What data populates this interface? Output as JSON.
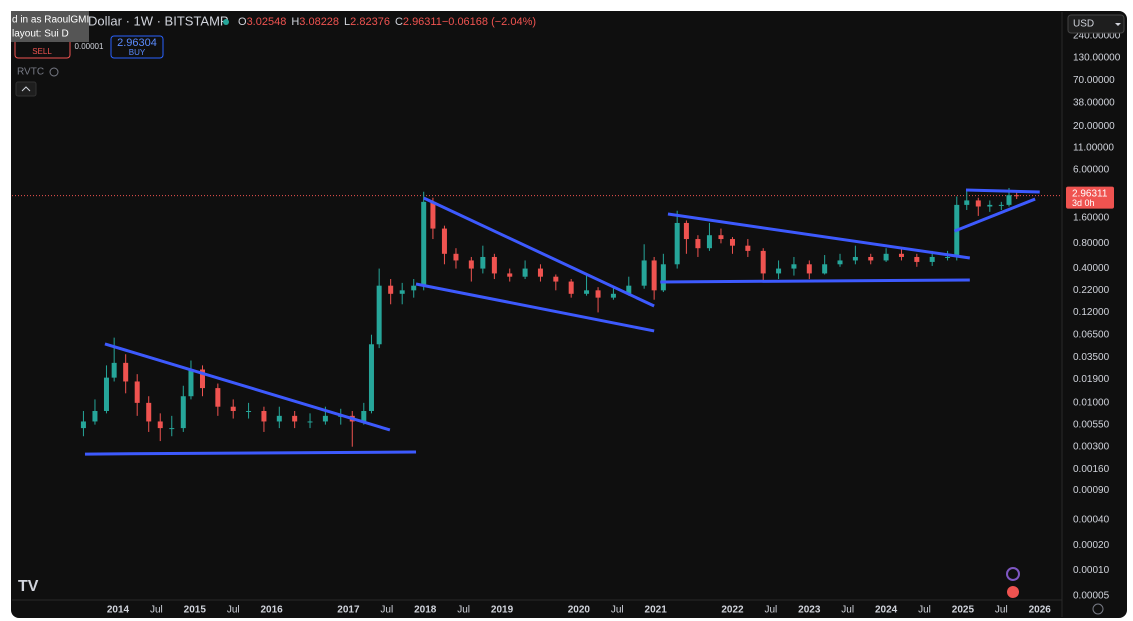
{
  "ui": {
    "tooltip": [
      "d in as RaoulGMI",
      "layout: Sui D"
    ],
    "symbol": "Dollar · 1W · BITSTAMP",
    "ohlc": [
      "O",
      "3.02548",
      "H",
      "3.08228",
      "L",
      "2.82376",
      "C",
      "2.96311",
      "−0.06168 (−2.04%)"
    ],
    "sell": "SELL",
    "spread": "0.00001",
    "buy_price": "2.96304",
    "buy": "BUY",
    "indicator": "RVTC",
    "currency": "USD",
    "countdown": "3d 0h"
  },
  "chart_data": {
    "type": "candlestick",
    "log_scale": true,
    "grid": false,
    "up_color": "#26a69a",
    "down_color": "#ef5350",
    "line_color": "#3d5afe",
    "price_line_color": "#ef5350",
    "xlim": [
      2012.62,
      2026.29
    ],
    "ylim": [
      3.2e-05,
      460
    ],
    "xticks": [
      2014,
      {
        "value": 2014.5,
        "label": "Jul"
      },
      2015,
      {
        "value": 2015.5,
        "label": "Jul"
      },
      2016,
      2017,
      {
        "value": 2017.5,
        "label": "Jul"
      },
      2018,
      {
        "value": 2018.5,
        "label": "Jul"
      },
      2019,
      2020,
      {
        "value": 2020.5,
        "label": "Jul"
      },
      2021,
      2022,
      {
        "value": 2022.5,
        "label": "Jul"
      },
      2023,
      {
        "value": 2023.5,
        "label": "Jul"
      },
      2024,
      {
        "value": 2024.5,
        "label": "Jul"
      },
      2025,
      {
        "value": 2025.5,
        "label": "Jul"
      },
      2026
    ],
    "yticks": [
      {
        "value": 240,
        "label": "240.00000"
      },
      {
        "value": 130,
        "label": "130.00000"
      },
      {
        "value": 70,
        "label": "70.00000"
      },
      {
        "value": 38,
        "label": "38.00000"
      },
      {
        "value": 20,
        "label": "20.00000"
      },
      {
        "value": 11,
        "label": "11.00000"
      },
      {
        "value": 6,
        "label": "6.00000"
      },
      {
        "value": 1.6,
        "label": "1.60000"
      },
      {
        "value": 0.8,
        "label": "0.80000"
      },
      {
        "value": 0.4,
        "label": "0.40000"
      },
      {
        "value": 0.22,
        "label": "0.22000"
      },
      {
        "value": 0.12,
        "label": "0.12000"
      },
      {
        "value": 0.065,
        "label": "0.06500"
      },
      {
        "value": 0.035,
        "label": "0.03500"
      },
      {
        "value": 0.019,
        "label": "0.01900"
      },
      {
        "value": 0.01,
        "label": "0.01000"
      },
      {
        "value": 0.0055,
        "label": "0.00550"
      },
      {
        "value": 0.003,
        "label": "0.00300"
      },
      {
        "value": 0.0016,
        "label": "0.00160"
      },
      {
        "value": 0.0009,
        "label": "0.00090"
      },
      {
        "value": 0.0004,
        "label": "0.00040"
      },
      {
        "value": 0.0002,
        "label": "0.00020"
      },
      {
        "value": 0.0001,
        "label": "0.00010"
      },
      {
        "value": 5e-05,
        "label": "0.00005"
      }
    ],
    "x": [
      2013.55,
      2013.7,
      2013.85,
      2013.95,
      2014.1,
      2014.25,
      2014.4,
      2014.55,
      2014.7,
      2014.85,
      2014.95,
      2015.1,
      2015.3,
      2015.5,
      2015.7,
      2015.9,
      2016.1,
      2016.3,
      2016.5,
      2016.7,
      2016.9,
      2017.05,
      2017.2,
      2017.3,
      2017.4,
      2017.55,
      2017.7,
      2017.85,
      2017.98,
      2018.1,
      2018.25,
      2018.4,
      2018.6,
      2018.75,
      2018.9,
      2019.1,
      2019.3,
      2019.5,
      2019.7,
      2019.9,
      2020.1,
      2020.25,
      2020.45,
      2020.65,
      2020.85,
      2020.98,
      2021.1,
      2021.28,
      2021.4,
      2021.55,
      2021.7,
      2021.85,
      2022.0,
      2022.2,
      2022.4,
      2022.6,
      2022.8,
      2023.0,
      2023.2,
      2023.4,
      2023.6,
      2023.8,
      2024.0,
      2024.2,
      2024.4,
      2024.6,
      2024.8,
      2024.92,
      2025.05,
      2025.2,
      2025.35,
      2025.5,
      2025.6,
      2025.7
    ],
    "open": [
      0.005,
      0.006,
      0.008,
      0.02,
      0.03,
      0.018,
      0.01,
      0.006,
      0.005,
      0.005,
      0.012,
      0.025,
      0.015,
      0.009,
      0.008,
      0.008,
      0.006,
      0.007,
      0.006,
      0.006,
      0.007,
      0.007,
      0.006,
      0.008,
      0.05,
      0.25,
      0.2,
      0.22,
      0.25,
      2.5,
      1.2,
      0.6,
      0.5,
      0.4,
      0.55,
      0.35,
      0.32,
      0.4,
      0.32,
      0.28,
      0.2,
      0.22,
      0.18,
      0.2,
      0.25,
      0.5,
      0.22,
      0.45,
      1.4,
      0.9,
      0.7,
      1.0,
      0.9,
      0.75,
      0.65,
      0.35,
      0.4,
      0.45,
      0.35,
      0.45,
      0.5,
      0.55,
      0.5,
      0.6,
      0.55,
      0.48,
      0.55,
      0.55,
      2.3,
      2.6,
      2.2,
      2.3,
      2.3,
      3.0
    ],
    "high": [
      0.008,
      0.011,
      0.028,
      0.06,
      0.038,
      0.022,
      0.012,
      0.0075,
      0.007,
      0.016,
      0.032,
      0.028,
      0.017,
      0.011,
      0.01,
      0.009,
      0.009,
      0.008,
      0.0075,
      0.009,
      0.0085,
      0.008,
      0.01,
      0.065,
      0.4,
      0.3,
      0.27,
      0.3,
      3.3,
      2.8,
      1.3,
      0.7,
      0.55,
      0.75,
      0.6,
      0.4,
      0.5,
      0.45,
      0.34,
      0.3,
      0.34,
      0.24,
      0.24,
      0.32,
      0.78,
      0.55,
      0.6,
      1.96,
      1.5,
      1.0,
      1.4,
      1.2,
      0.95,
      0.9,
      0.7,
      0.5,
      0.55,
      0.5,
      0.58,
      0.6,
      0.75,
      0.6,
      0.7,
      0.72,
      0.6,
      0.65,
      0.65,
      2.9,
      3.4,
      2.8,
      2.6,
      2.5,
      3.66,
      3.4
    ],
    "low": [
      0.004,
      0.0055,
      0.0075,
      0.018,
      0.013,
      0.007,
      0.0045,
      0.0035,
      0.004,
      0.0045,
      0.011,
      0.012,
      0.007,
      0.0065,
      0.0065,
      0.0045,
      0.005,
      0.005,
      0.005,
      0.0055,
      0.0055,
      0.003,
      0.0055,
      0.0075,
      0.045,
      0.15,
      0.15,
      0.18,
      0.22,
      0.9,
      0.45,
      0.4,
      0.28,
      0.35,
      0.3,
      0.28,
      0.3,
      0.28,
      0.22,
      0.18,
      0.19,
      0.12,
      0.17,
      0.19,
      0.23,
      0.17,
      0.21,
      0.4,
      0.6,
      0.55,
      0.65,
      0.8,
      0.6,
      0.55,
      0.29,
      0.3,
      0.33,
      0.3,
      0.34,
      0.42,
      0.45,
      0.45,
      0.48,
      0.5,
      0.42,
      0.43,
      0.5,
      0.5,
      2.0,
      1.7,
      1.9,
      2.0,
      2.2,
      2.7
    ],
    "close": [
      0.006,
      0.008,
      0.02,
      0.03,
      0.018,
      0.01,
      0.006,
      0.005,
      0.005,
      0.012,
      0.025,
      0.015,
      0.009,
      0.008,
      0.008,
      0.006,
      0.007,
      0.006,
      0.006,
      0.007,
      0.007,
      0.006,
      0.008,
      0.05,
      0.25,
      0.2,
      0.22,
      0.25,
      2.5,
      1.2,
      0.6,
      0.5,
      0.4,
      0.55,
      0.35,
      0.32,
      0.4,
      0.32,
      0.28,
      0.2,
      0.22,
      0.18,
      0.2,
      0.25,
      0.5,
      0.22,
      0.45,
      1.4,
      0.9,
      0.7,
      1.0,
      0.9,
      0.75,
      0.65,
      0.35,
      0.4,
      0.45,
      0.35,
      0.45,
      0.5,
      0.55,
      0.5,
      0.6,
      0.55,
      0.48,
      0.55,
      0.55,
      2.3,
      2.6,
      2.2,
      2.3,
      2.3,
      3.0,
      2.96
    ],
    "price_line": 2.96311,
    "trendlines": [
      {
        "x1": 2013.83,
        "y1": 0.0505,
        "x2": 2017.54,
        "y2": 0.00475
      },
      {
        "x1": 2013.57,
        "y1": 0.00245,
        "x2": 2017.88,
        "y2": 0.00259
      },
      {
        "x1": 2017.98,
        "y1": 2.78,
        "x2": 2020.98,
        "y2": 0.143
      },
      {
        "x1": 2017.88,
        "y1": 0.262,
        "x2": 2020.98,
        "y2": 0.0721
      },
      {
        "x1": 2021.16,
        "y1": 1.79,
        "x2": 2025.09,
        "y2": 0.535
      },
      {
        "x1": 2021.06,
        "y1": 0.277,
        "x2": 2025.09,
        "y2": 0.292
      },
      {
        "x1": 2025.04,
        "y1": 3.46,
        "x2": 2026.0,
        "y2": 3.28
      },
      {
        "x1": 2024.89,
        "y1": 1.12,
        "x2": 2025.94,
        "y2": 2.7
      }
    ]
  }
}
